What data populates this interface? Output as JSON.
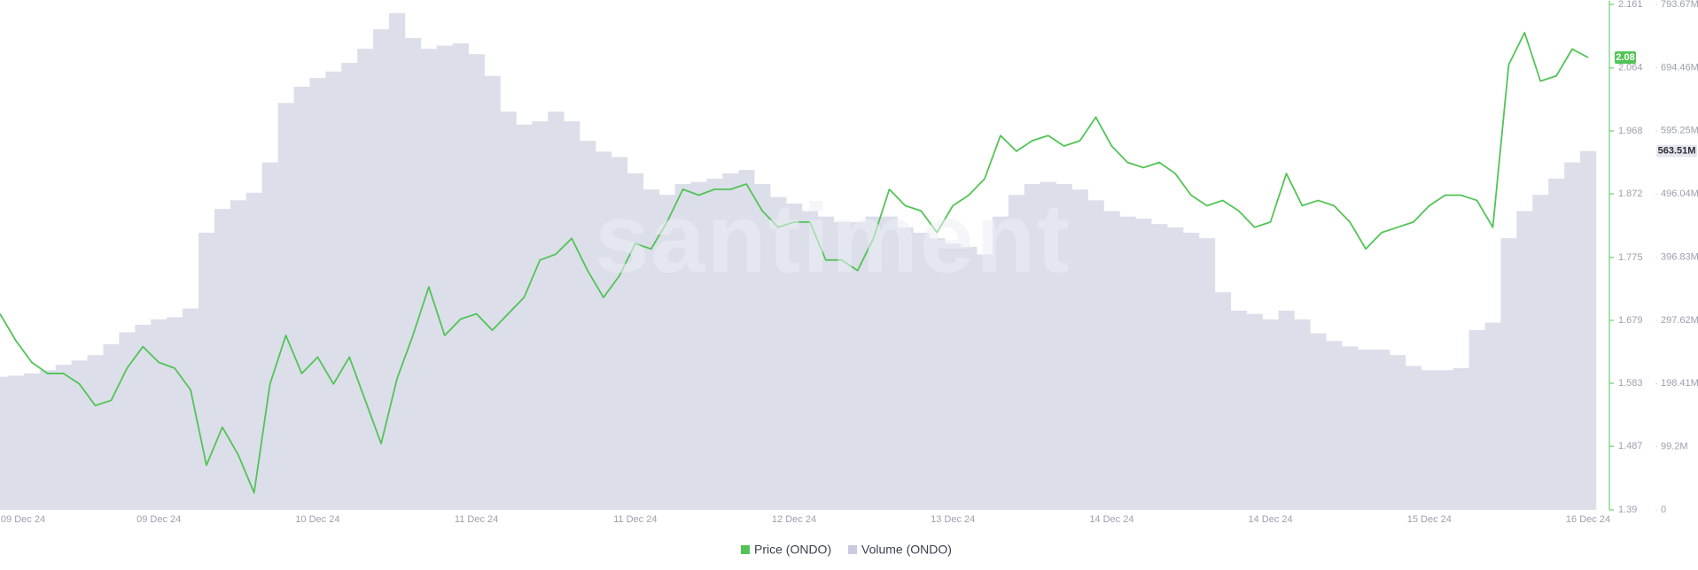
{
  "chart_data": {
    "type": "line",
    "watermark": "santiment",
    "categories": [
      null,
      "09 Dec 24",
      null,
      null,
      null,
      null,
      null,
      null,
      null,
      null,
      "09 Dec 24",
      null,
      null,
      null,
      null,
      null,
      null,
      null,
      null,
      null,
      "10 Dec 24",
      null,
      null,
      null,
      null,
      null,
      null,
      null,
      null,
      null,
      "11 Dec 24",
      null,
      null,
      null,
      null,
      null,
      null,
      null,
      null,
      null,
      "11 Dec 24",
      null,
      null,
      null,
      null,
      null,
      null,
      null,
      null,
      null,
      "12 Dec 24",
      null,
      null,
      null,
      null,
      null,
      null,
      null,
      null,
      null,
      "13 Dec 24",
      null,
      null,
      null,
      null,
      null,
      null,
      null,
      null,
      null,
      "14 Dec 24",
      null,
      null,
      null,
      null,
      null,
      null,
      null,
      null,
      null,
      "14 Dec 24",
      null,
      null,
      null,
      null,
      null,
      null,
      null,
      null,
      null,
      "15 Dec 24",
      null,
      null,
      null,
      null,
      null,
      null,
      null,
      null,
      null,
      "16 Dec 24"
    ],
    "series": [
      {
        "name": "Price (ONDO)",
        "type": "line",
        "color": "#52c456",
        "axis": "y",
        "current_value": 2.08,
        "values": [
          1.689,
          1.648,
          1.615,
          1.598,
          1.598,
          1.582,
          1.549,
          1.557,
          1.606,
          1.639,
          1.615,
          1.606,
          1.573,
          1.458,
          1.516,
          1.474,
          1.416,
          1.582,
          1.656,
          1.598,
          1.623,
          1.582,
          1.623,
          1.557,
          1.491,
          1.59,
          1.656,
          1.73,
          1.656,
          1.681,
          1.689,
          1.664,
          1.689,
          1.714,
          1.771,
          1.78,
          1.804,
          1.755,
          1.714,
          1.747,
          1.796,
          1.788,
          1.829,
          1.879,
          1.87,
          1.879,
          1.879,
          1.887,
          1.846,
          1.821,
          1.829,
          1.829,
          1.771,
          1.771,
          1.755,
          1.804,
          1.879,
          1.854,
          1.846,
          1.813,
          1.854,
          1.87,
          1.895,
          1.961,
          1.937,
          1.953,
          1.961,
          1.945,
          1.953,
          1.989,
          1.945,
          1.92,
          1.912,
          1.92,
          1.903,
          1.87,
          1.854,
          1.862,
          1.846,
          1.821,
          1.829,
          1.903,
          1.854,
          1.862,
          1.854,
          1.829,
          1.788,
          1.813,
          1.821,
          1.829,
          1.854,
          1.87,
          1.87,
          1.862,
          1.821,
          2.069,
          2.118,
          2.044,
          2.052,
          2.093,
          2.08
        ]
      },
      {
        "name": "Volume (ONDO)",
        "type": "bar",
        "color": "#dcdeea",
        "axis": "y2",
        "current_value": {
          "value": 563510000,
          "label": "563.51M"
        },
        "values": [
          209040000,
          210740000,
          214140000,
          219240000,
          227730000,
          234530000,
          243030000,
          260020000,
          278720000,
          290610000,
          299110000,
          302510000,
          316110000,
          435070000,
          472460000,
          486060000,
          497950000,
          545540000,
          639010000,
          664500000,
          678100000,
          688300000,
          701890000,
          723990000,
          754580000,
          780070000,
          740980000,
          723990000,
          729090000,
          732480000,
          715490000,
          681500000,
          625420000,
          605020000,
          610120000,
          625420000,
          610120000,
          579530000,
          562530000,
          554040000,
          528540000,
          503050000,
          494550000,
          511550000,
          514950000,
          520050000,
          528540000,
          533640000,
          511550000,
          491160000,
          480960000,
          469060000,
          460560000,
          452070000,
          452070000,
          460560000,
          460560000,
          443570000,
          435070000,
          426570000,
          418080000,
          412980000,
          401080000,
          460560000,
          494550000,
          511550000,
          514950000,
          511550000,
          503050000,
          486060000,
          469060000,
          460560000,
          457170000,
          448670000,
          443570000,
          435070000,
          426570000,
          341600000,
          312710000,
          307610000,
          299110000,
          312710000,
          299110000,
          277020000,
          265120000,
          256620000,
          251530000,
          251530000,
          243030000,
          226030000,
          219240000,
          219240000,
          222630000,
          282120000,
          294010000,
          426570000,
          469060000,
          494550000,
          520050000,
          545540000,
          563510000
        ]
      }
    ],
    "ylim": [
      1.39,
      2.161
    ],
    "yticks": [
      2.161,
      2.064,
      1.968,
      1.872,
      1.775,
      1.679,
      1.583,
      1.487,
      1.39
    ],
    "y2lim": [
      0,
      793670000
    ],
    "y2ticks": [
      {
        "value": 793670000,
        "label": "793.67M"
      },
      {
        "value": 694460000,
        "label": "694.46M"
      },
      {
        "value": 595250000,
        "label": "595.25M"
      },
      {
        "value": 496040000,
        "label": "496.04M"
      },
      {
        "value": 396830000,
        "label": "396.83M"
      },
      {
        "value": 297620000,
        "label": "297.62M"
      },
      {
        "value": 198410000,
        "label": "198.41M"
      },
      {
        "value": 99200000,
        "label": "99.2M"
      },
      0
    ],
    "legend": "bottom"
  }
}
